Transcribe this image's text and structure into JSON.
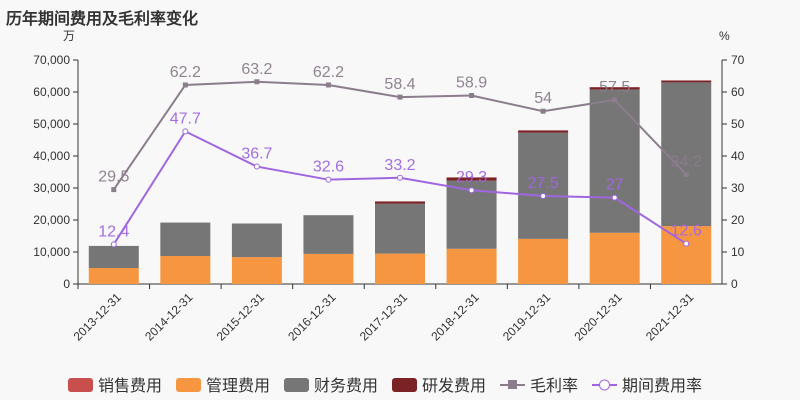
{
  "chart_data": {
    "type": "bar",
    "title": "历年期间费用及毛利率变化",
    "y_left_unit": "万",
    "y_right_unit": "%",
    "ylim_left": [
      0,
      70000
    ],
    "ylim_right": [
      0,
      70
    ],
    "y_left_ticks": [
      "0",
      "10,000",
      "20,000",
      "30,000",
      "40,000",
      "50,000",
      "60,000",
      "70,000"
    ],
    "y_right_ticks": [
      "0",
      "10",
      "20",
      "30",
      "40",
      "50",
      "60",
      "70"
    ],
    "categories": [
      "2013-12-31",
      "2014-12-31",
      "2015-12-31",
      "2016-12-31",
      "2017-12-31",
      "2018-12-31",
      "2019-12-31",
      "2020-12-31",
      "2021-12-31"
    ],
    "series": [
      {
        "name": "销售费用",
        "type": "bar",
        "color": "#c94f4f",
        "values": [
          0,
          0,
          0,
          0,
          0,
          0,
          0,
          0,
          0
        ]
      },
      {
        "name": "管理费用",
        "type": "bar",
        "color": "#f79641",
        "values": [
          5000,
          8750,
          8400,
          9400,
          9500,
          11000,
          14100,
          16000,
          18100
        ]
      },
      {
        "name": "财务费用",
        "type": "bar",
        "color": "#767676",
        "values": [
          6900,
          10450,
          10500,
          12100,
          15600,
          21300,
          33200,
          44800,
          44900
        ]
      },
      {
        "name": "研发费用",
        "type": "bar",
        "color": "#7b2224",
        "values": [
          0,
          0,
          0,
          0,
          700,
          1000,
          700,
          700,
          600
        ]
      },
      {
        "name": "毛利率",
        "type": "line",
        "color": "#8b7d8b",
        "values": [
          29.5,
          62.2,
          63.2,
          62.2,
          58.4,
          58.9,
          54,
          57.5,
          34.2
        ]
      },
      {
        "name": "期间费用率",
        "type": "line",
        "color": "#a066e0",
        "values": [
          12.4,
          47.7,
          36.7,
          32.6,
          33.2,
          29.3,
          27.5,
          27,
          12.6
        ]
      }
    ],
    "legend": "bottom",
    "grid": false
  }
}
